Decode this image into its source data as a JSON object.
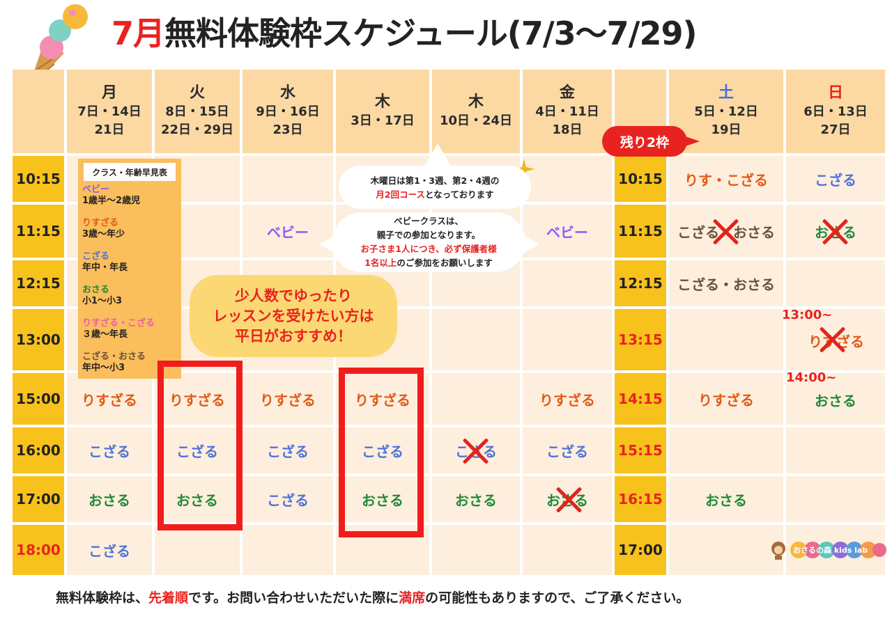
{
  "title": {
    "month": "7月",
    "rest": "無料体験枠スケジュール(7/3〜7/29)"
  },
  "headers": {
    "mon": {
      "day": "月",
      "dates1": "7日・14日",
      "dates2": "21日"
    },
    "tue": {
      "day": "火",
      "dates1": "8日・15日",
      "dates2": "22日・29日"
    },
    "wed": {
      "day": "水",
      "dates1": "9日・16日",
      "dates2": "23日"
    },
    "thu1": {
      "day": "木",
      "dates1": "3日・17日",
      "dates2": ""
    },
    "thu2": {
      "day": "木",
      "dates1": "10日・24日",
      "dates2": ""
    },
    "fri": {
      "day": "金",
      "dates1": "4日・11日",
      "dates2": "18日"
    },
    "sat": {
      "day": "土",
      "dates1": "5日・12日",
      "dates2": "19日"
    },
    "sun": {
      "day": "日",
      "dates1": "6日・13日",
      "dates2": "27日"
    }
  },
  "weekday_times": [
    "10:15",
    "11:15",
    "12:15",
    "13:00",
    "15:00",
    "16:00",
    "17:00",
    "18:00"
  ],
  "weekend_times": [
    "10:15",
    "11:15",
    "12:15",
    "13:15",
    "14:15",
    "15:15",
    "16:15",
    "17:00"
  ],
  "legend": {
    "title": "クラス・年齢早見表",
    "items": [
      {
        "name": "ベビー",
        "age": "1歳半〜2歳児",
        "color": "#8b5cf6"
      },
      {
        "name": "りすざる",
        "age": "3歳〜年少",
        "color": "#e05a14"
      },
      {
        "name": "こざる",
        "age": "年中・年長",
        "color": "#4f72d9"
      },
      {
        "name": "おさる",
        "age": "小1〜小3",
        "color": "#1f8a38"
      },
      {
        "name": "りすざる・こざる",
        "age": "３歳〜年長",
        "color": "#ec5fa0"
      },
      {
        "name": "こざる・おさる",
        "age": "年中〜小3",
        "color": "#6b4f3a"
      }
    ]
  },
  "cells": {
    "wed_1115": "ベビー",
    "fri_1115": "ベビー",
    "mon_1500": "りすざる",
    "tue_1500": "りすざる",
    "wed_1500": "りすざる",
    "thu1_1500": "りすざる",
    "fri_1500": "りすざる",
    "mon_1600": "こざる",
    "tue_1600": "こざる",
    "wed_1600": "こざる",
    "thu1_1600": "こざる",
    "thu2_1600": "こざる",
    "fri_1600": "こざる",
    "mon_1700": "おさる",
    "tue_1700": "おさる",
    "wed_1700": "こざる",
    "thu1_1700": "おさる",
    "thu2_1700": "おさる",
    "fri_1700": "おさる",
    "mon_1800": "こざる",
    "sat_1015": "りす・こざる",
    "sun_1015": "こざる",
    "sat_1115": "こざる・おさる",
    "sun_1115": "おさる",
    "sat_1215": "こざる・おさる",
    "sun_1315_time": "13:00~",
    "sun_1315": "りすざる",
    "sat_1415": "りすざる",
    "sun_1415_time": "14:00~",
    "sun_1415": "おさる",
    "sat_1615": "おさる"
  },
  "bubble1": {
    "line1": "木曜日は第1・3週、第2・4週の",
    "line2_red": "月2回コース",
    "line2_rest": "となっております"
  },
  "bubble2": {
    "line1": "ベビークラスは、",
    "line2": "親子での参加となります。",
    "line3": "お子さま1人につき、必ず保護者様",
    "line4_red": "1名以上",
    "line4_rest": "のご参加をお願いします"
  },
  "pitch": {
    "line1": "少人数でゆったり",
    "line2": "レッスンを受けたい方は",
    "line3": "平日がおすすめ！"
  },
  "remaining": "残り2枠",
  "footer": {
    "p1": "無料体験枠は、",
    "p2": "先着順",
    "p3": "です。お問い合わせいただいた際に",
    "p4": "満席",
    "p5": "の可能性もありますので、ご了承ください。"
  },
  "brand": "おさるの森 kids lab",
  "colors": {
    "header": "#fcd9a3",
    "time": "#f7c21c",
    "body": "#fdeedd",
    "accent": "#e8231f"
  }
}
